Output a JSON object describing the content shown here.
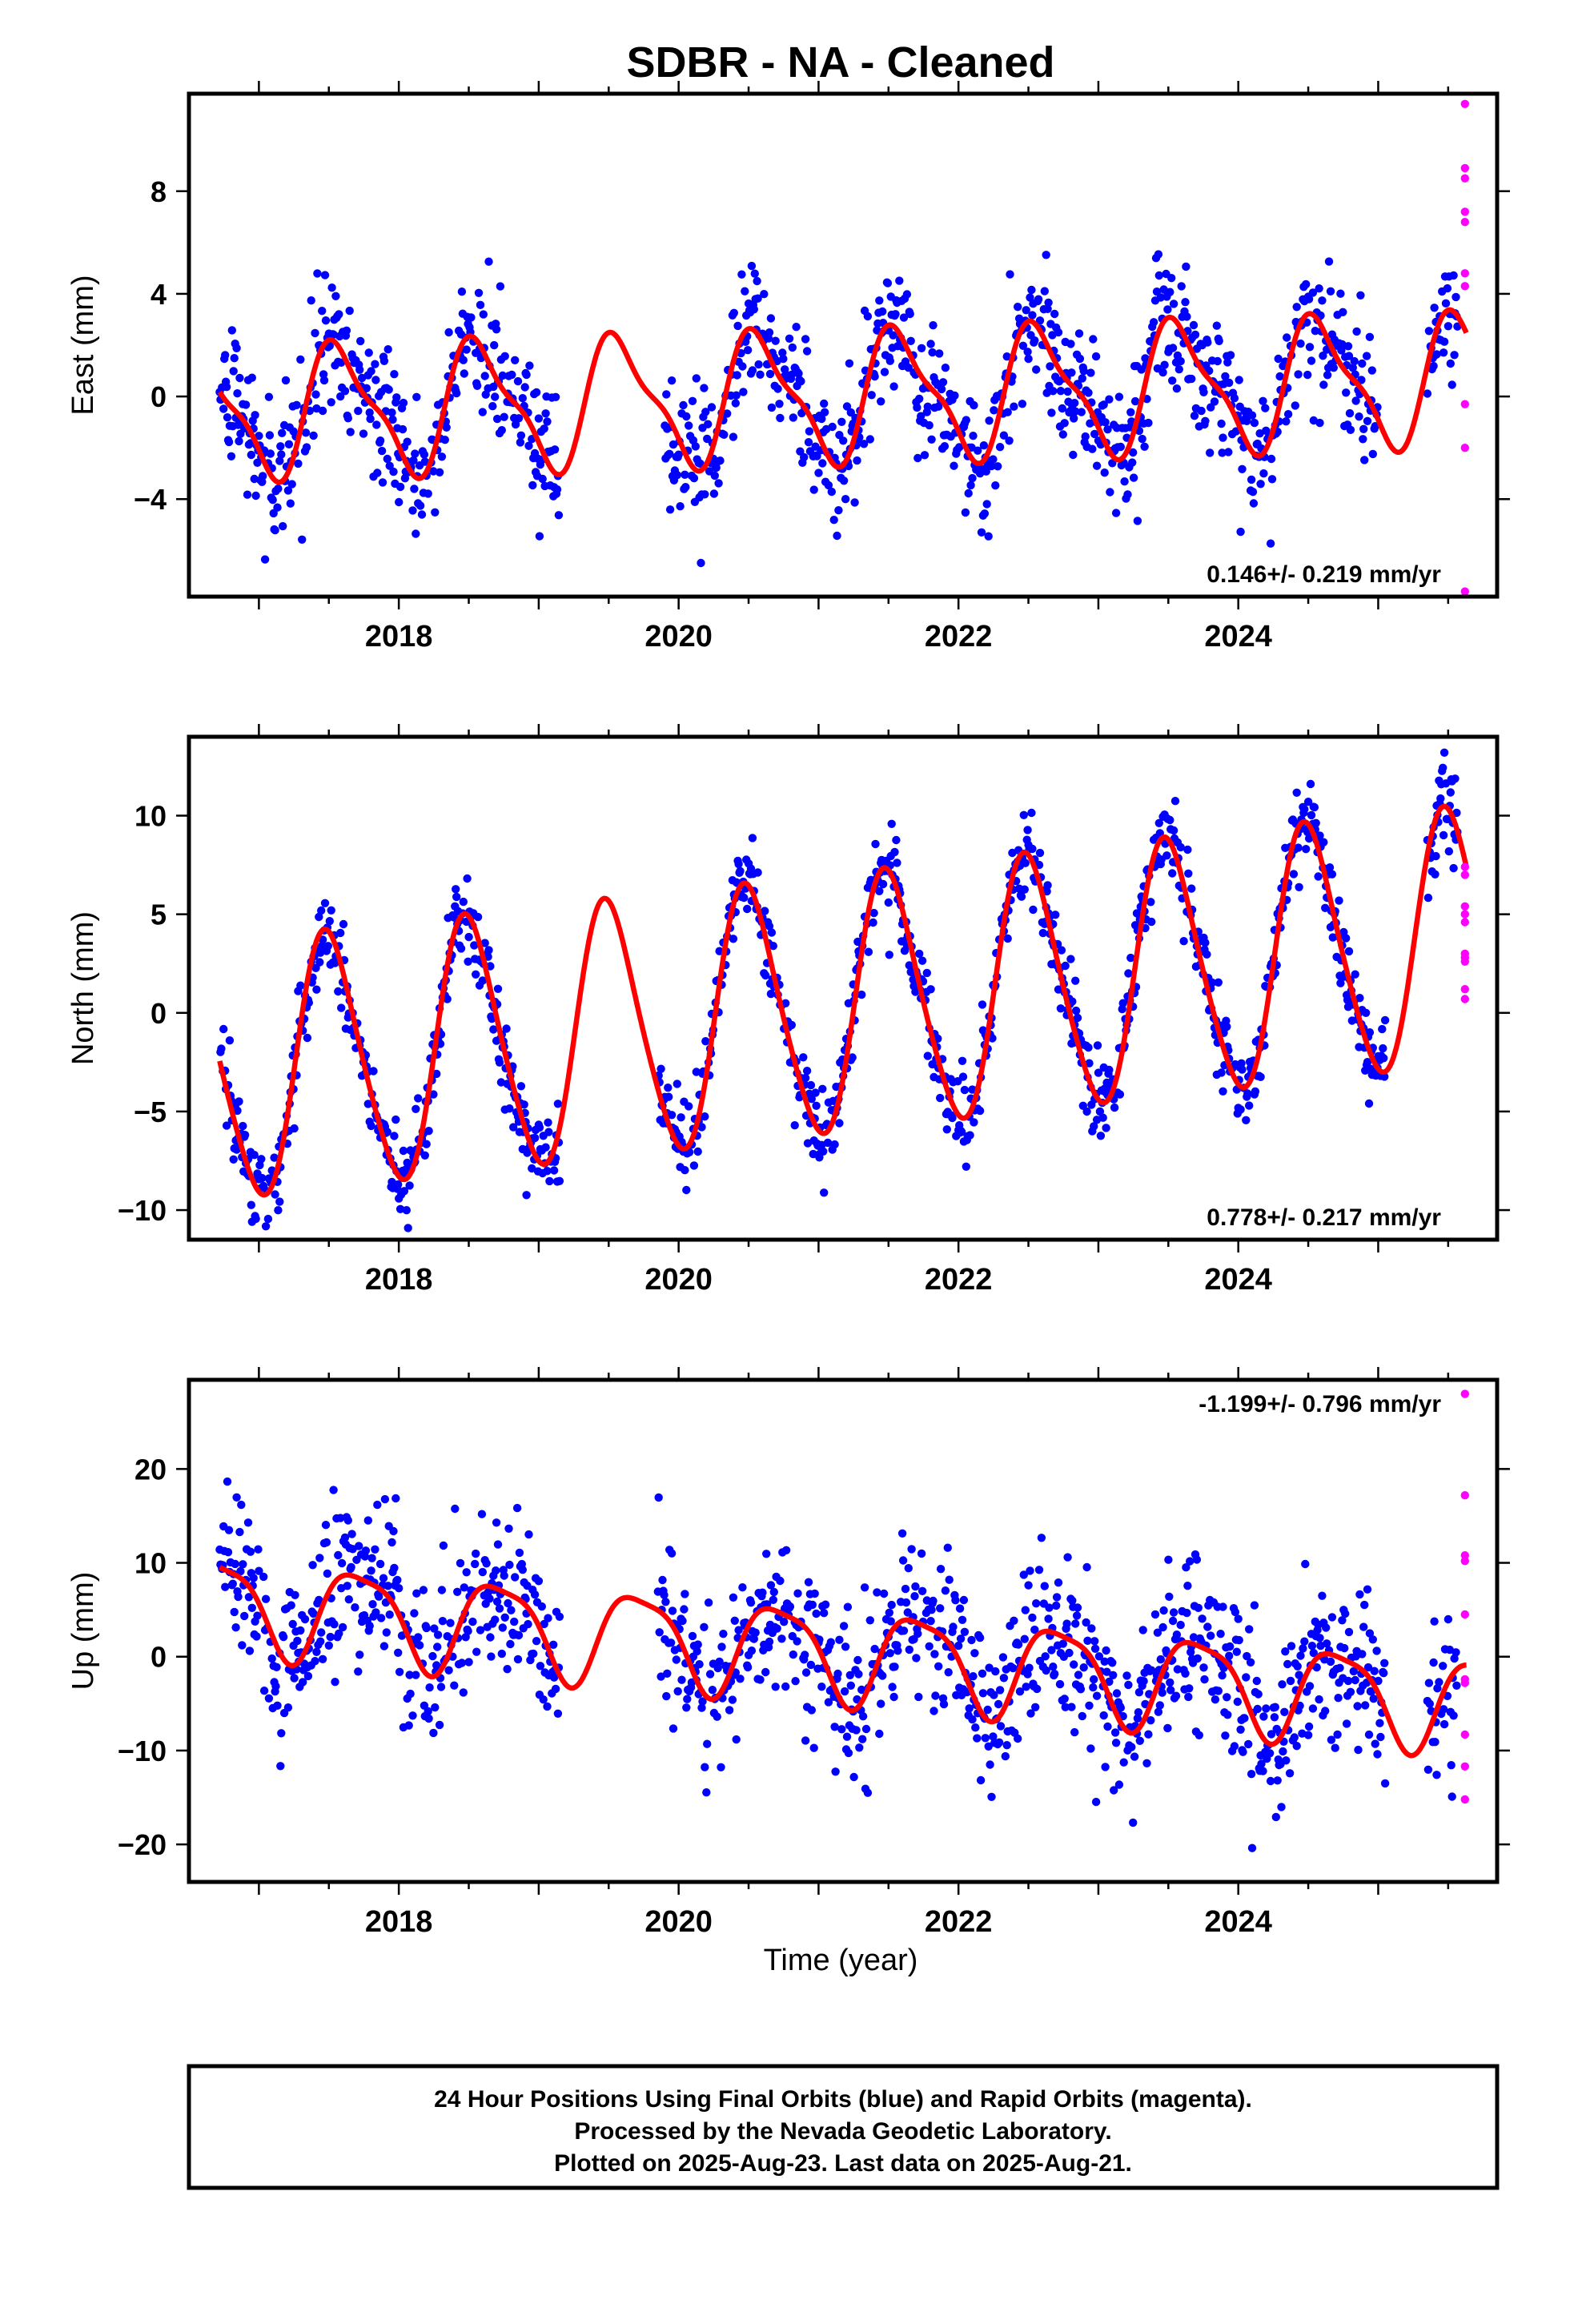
{
  "title": "SDBR  - NA - Cleaned",
  "xlabel": "Time (year)",
  "footer": [
    "24 Hour Positions Using Final Orbits (blue) and Rapid Orbits (magenta).",
    "Processed by the Nevada Geodetic Laboratory.",
    "Plotted on 2025-Aug-23. Last data on 2025-Aug-21."
  ],
  "colors": {
    "final": "#0000ff",
    "rapid": "#ff00ff",
    "model": "#ff0000",
    "axes": "#000000"
  },
  "chart_data": [
    {
      "type": "scatter",
      "ylabel": "East (mm)",
      "rate_label": "0.146+/- 0.219 mm/yr",
      "xlim": [
        2016.5,
        2025.85
      ],
      "ylim": [
        -7.8,
        11.8
      ],
      "yticks": [
        -4,
        0,
        4,
        8
      ],
      "xticks": [
        2018,
        2020,
        2022,
        2024
      ],
      "model": {
        "mean": 0.0,
        "trend": 0.146,
        "t0": 2021,
        "a1": 2.4,
        "p1": 2017.58,
        "a2": 0.75,
        "p2": 2017.45
      },
      "scatter_sd": 1.3,
      "gaps": [
        [
          2019.15,
          2019.9
        ],
        [
          2025.0,
          2025.35
        ]
      ],
      "rapid": {
        "x": [
          2025.62,
          2025.62,
          2025.62,
          2025.62,
          2025.62,
          2025.62,
          2025.62,
          2025.62,
          2025.62,
          2025.62
        ],
        "y": [
          11.4,
          8.9,
          8.5,
          7.2,
          6.8,
          4.3,
          -0.3,
          -2.0,
          -7.6,
          4.8
        ]
      },
      "series": [
        {
          "name": "",
          "x": [
            2016.75,
            2017.0,
            2017.25,
            2017.5,
            2017.75,
            2018.0,
            2018.25,
            2018.5,
            2018.75,
            2019.0,
            2020.0,
            2020.25,
            2020.5,
            2020.75,
            2021.0,
            2021.25,
            2021.5,
            2021.75,
            2022.0,
            2022.25,
            2022.5,
            2022.75,
            2023.0,
            2023.25,
            2023.5,
            2023.75,
            2024.0,
            2024.25,
            2024.5,
            2024.75,
            2025.0,
            2025.5
          ],
          "y": [
            2.5,
            -2.1,
            -1.8,
            1.8,
            2.9,
            -1.9,
            -1.6,
            2.4,
            2.9,
            -1.8,
            -1.6,
            -1.3,
            2.7,
            2.9,
            -1.5,
            -1.1,
            3.0,
            3.2,
            -1.3,
            -0.8,
            3.1,
            3.4,
            -1.3,
            -0.9,
            3.5,
            3.6,
            -1.0,
            -0.5,
            3.7,
            3.6,
            -0.9,
            2.8
          ]
        }
      ]
    },
    {
      "type": "scatter",
      "ylabel": "North (mm)",
      "rate_label": "0.778+/- 0.217 mm/yr",
      "xlim": [
        2016.5,
        2025.85
      ],
      "ylim": [
        -11.5,
        14.0
      ],
      "yticks": [
        -10,
        -5,
        0,
        5,
        10
      ],
      "xticks": [
        2018,
        2020,
        2022,
        2024
      ],
      "model": {
        "mean": 0.2,
        "trend": 0.778,
        "t0": 2021,
        "a1": 6.4,
        "p1": 2017.5,
        "a2": 0.8,
        "p2": 2017.4
      },
      "scatter_sd": 1.1,
      "gaps": [
        [
          2019.15,
          2019.85
        ],
        [
          2025.05,
          2025.35
        ]
      ],
      "rapid": {
        "x": [
          2025.62,
          2025.62,
          2025.62,
          2025.62,
          2025.62,
          2025.62,
          2025.62,
          2025.62,
          2025.62,
          2025.62
        ],
        "y": [
          7.4,
          7.0,
          5.4,
          5.0,
          4.6,
          3.0,
          2.8,
          2.6,
          1.2,
          0.7
        ]
      },
      "series": [
        {
          "name": "",
          "x": [
            2016.75,
            2017.0,
            2017.5,
            2018.0,
            2018.5,
            2019.0,
            2020.0,
            2020.5,
            2021.0,
            2021.5,
            2022.0,
            2022.5,
            2023.0,
            2023.5,
            2024.0,
            2024.5,
            2025.0,
            2025.5
          ],
          "y": [
            -0.6,
            -8.1,
            5.2,
            -7.3,
            6.0,
            -6.6,
            -5.7,
            7.6,
            -4.9,
            8.3,
            -4.2,
            9.1,
            -3.4,
            9.9,
            -2.6,
            10.7,
            -1.9,
            11.3
          ]
        }
      ]
    },
    {
      "type": "scatter",
      "ylabel": "Up (mm)",
      "rate_label": "-1.199+/- 0.796 mm/yr",
      "xlim": [
        2016.5,
        2025.85
      ],
      "ylim": [
        -24.0,
        29.5
      ],
      "yticks": [
        -20,
        -10,
        0,
        10,
        20
      ],
      "xticks": [
        2018,
        2020,
        2022,
        2024
      ],
      "model": {
        "mean": 0.6,
        "trend": -1.199,
        "t0": 2021,
        "a1": 4.9,
        "p1": 2017.72,
        "a2": 1.2,
        "p2": 2017.5
      },
      "scatter_sd": 4.4,
      "gaps": [
        [
          2019.15,
          2019.85
        ],
        [
          2025.05,
          2025.35
        ]
      ],
      "rapid": {
        "x": [
          2025.62,
          2025.62,
          2025.62,
          2025.62,
          2025.62,
          2025.62,
          2025.62,
          2025.62,
          2025.62,
          2025.62
        ],
        "y": [
          28.0,
          17.2,
          10.8,
          10.2,
          4.5,
          -2.4,
          -2.8,
          -8.3,
          -11.7,
          -15.2
        ]
      },
      "series": [
        {
          "name": "",
          "x": [
            2016.75,
            2017.25,
            2017.75,
            2018.25,
            2018.75,
            2019.25,
            2019.75,
            2020.25,
            2020.75,
            2021.25,
            2021.75,
            2022.25,
            2022.75,
            2023.25,
            2023.75,
            2024.25,
            2024.75,
            2025.25,
            2025.62
          ],
          "y": [
            10.9,
            -1.1,
            9.4,
            -2.6,
            8.2,
            -3.6,
            7.0,
            -4.8,
            6.0,
            -6.0,
            4.8,
            -7.2,
            3.5,
            -8.4,
            2.4,
            -9.6,
            1.2,
            -10.6,
            -0.3
          ]
        }
      ]
    }
  ]
}
